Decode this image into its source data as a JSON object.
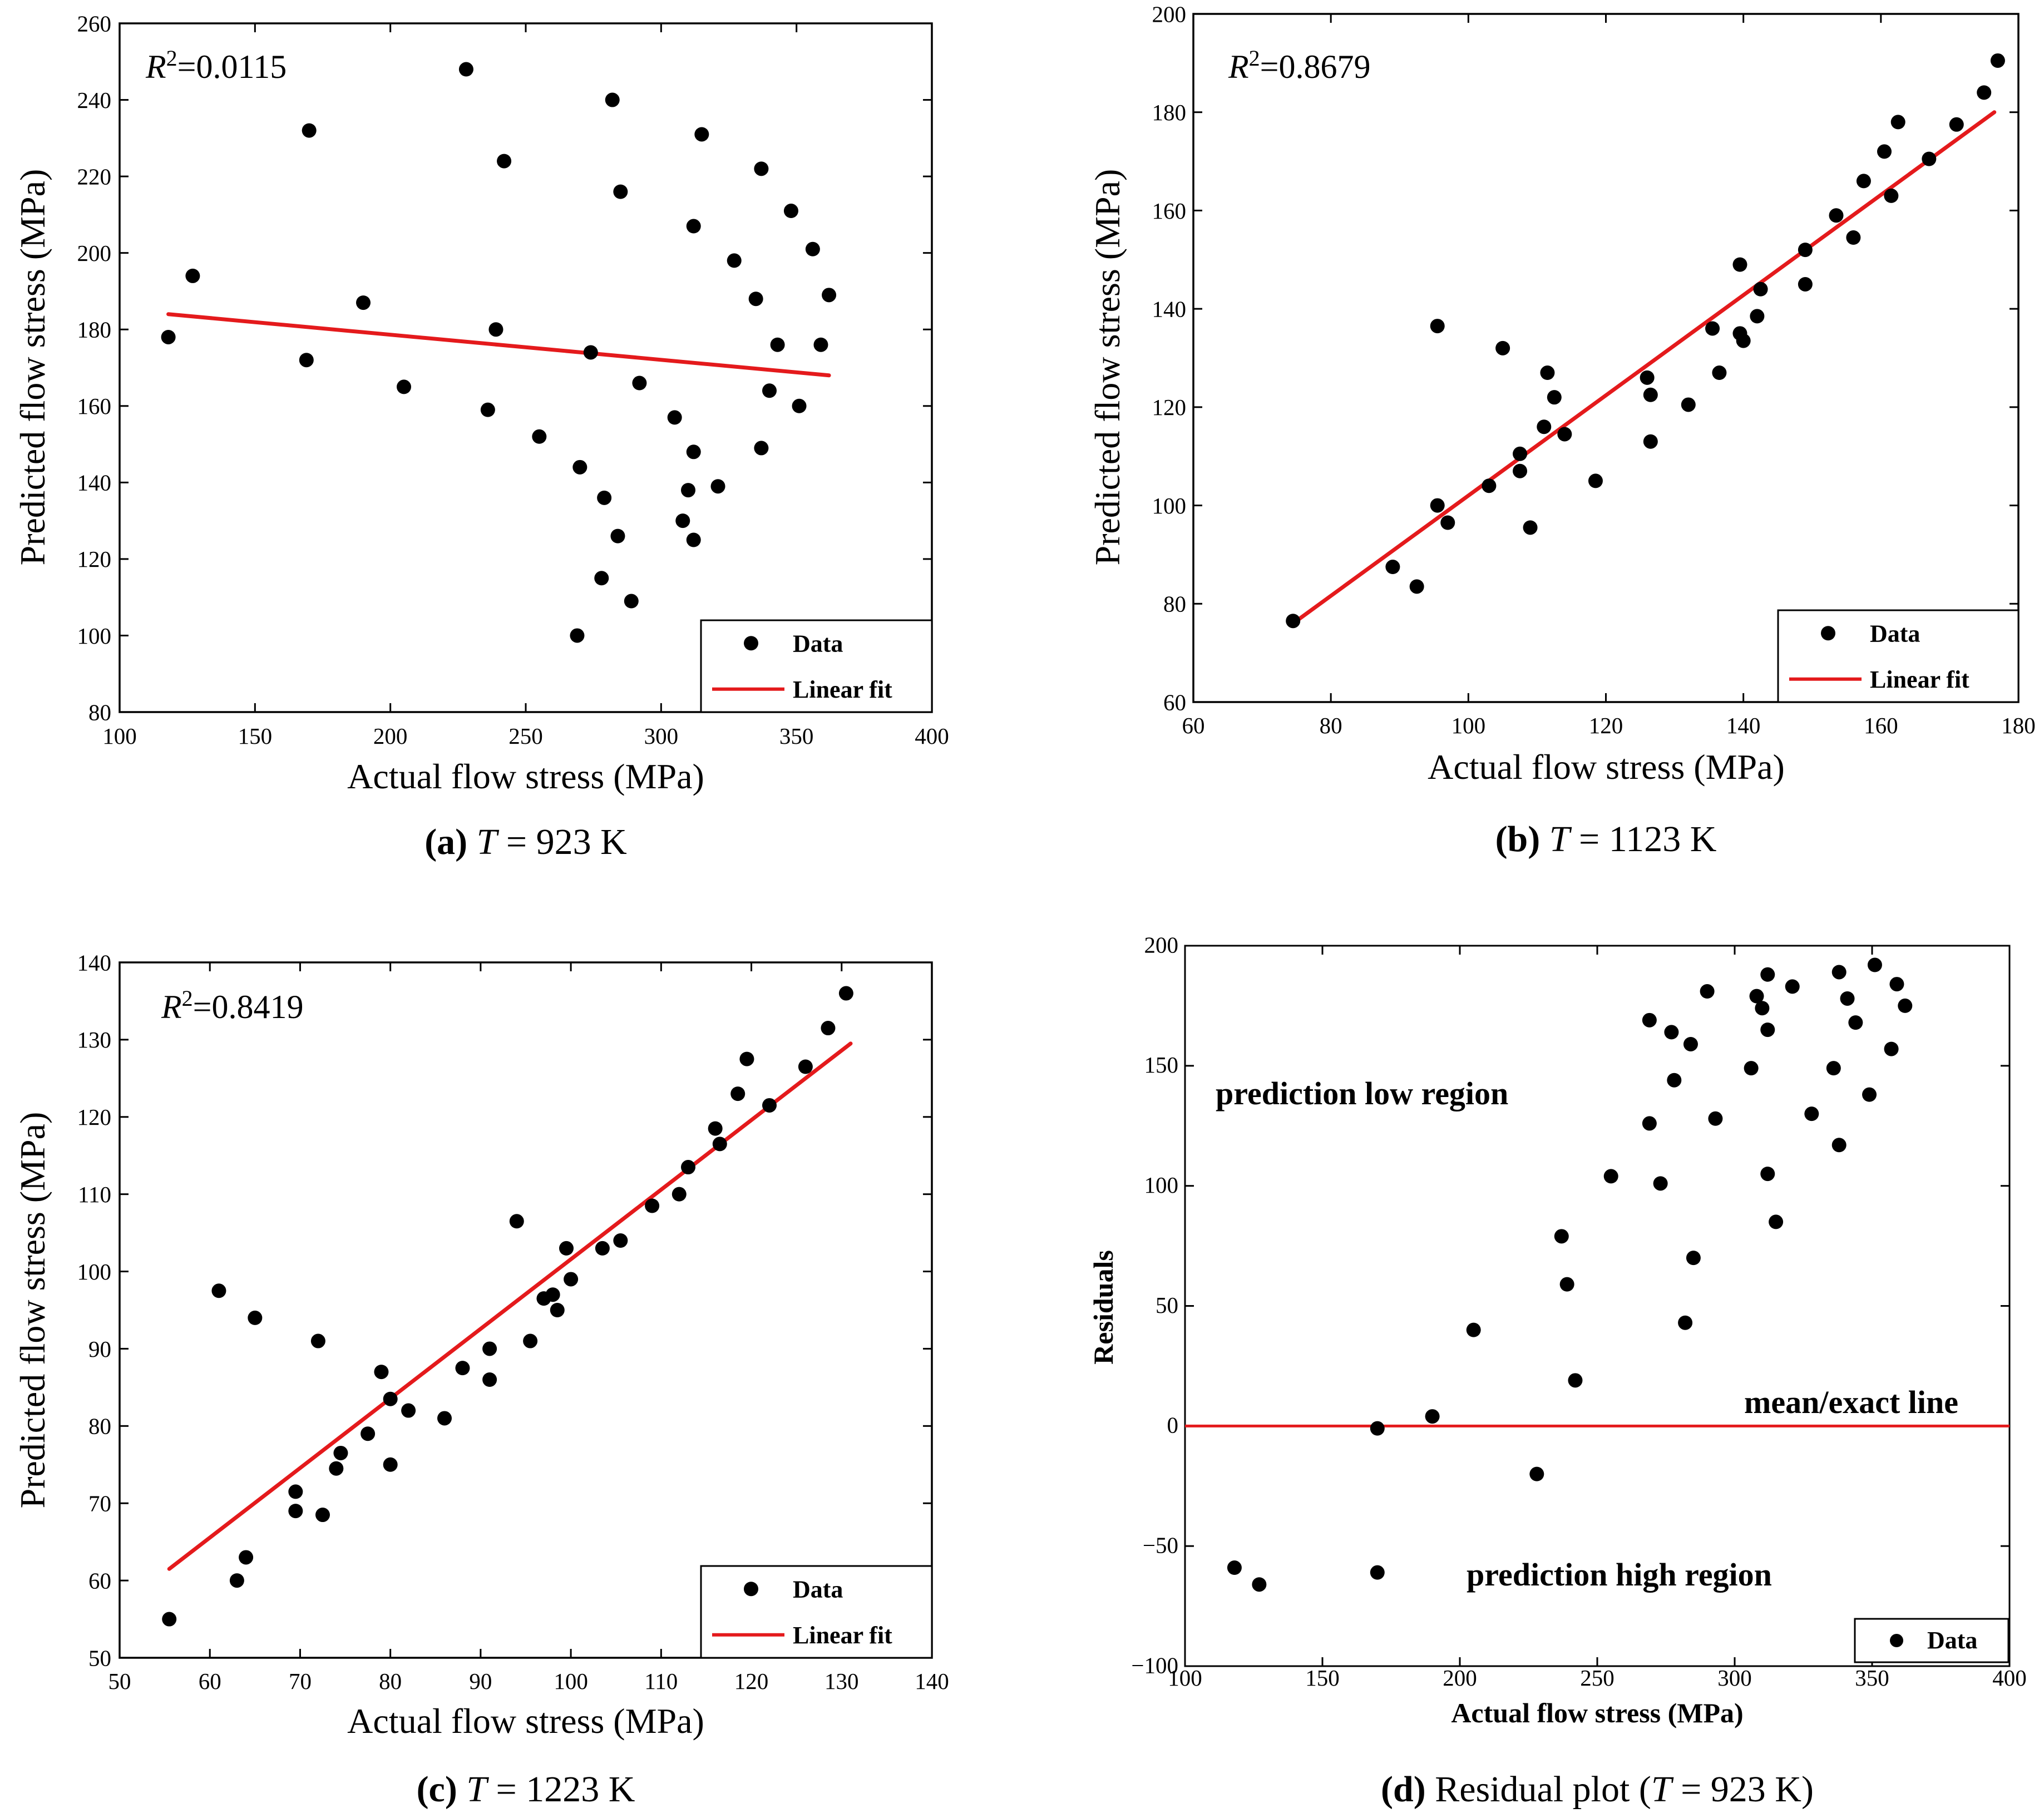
{
  "colors": {
    "fit": "#e41a1c",
    "point": "#000000",
    "frame": "#000000"
  },
  "chart_data": [
    {
      "id": "a",
      "type": "scatter",
      "caption": {
        "letter": "(a)",
        "var": "T",
        "rest": " = 923 K"
      },
      "r2": {
        "prefix": "R",
        "sup": "2",
        "value": "=0.0115"
      },
      "xlabel": "Actual flow stress (MPa)",
      "ylabel": "Predicted flow stress (MPa)",
      "xlim": [
        100,
        400
      ],
      "ylim": [
        80,
        260
      ],
      "xticks": [
        100,
        150,
        200,
        250,
        300,
        350,
        400
      ],
      "yticks": [
        80,
        100,
        120,
        140,
        160,
        180,
        200,
        220,
        240,
        260
      ],
      "legend": {
        "position": "bottom-right",
        "entries": [
          "Data",
          "Linear fit"
        ]
      },
      "fit": {
        "x": [
          118,
          362
        ],
        "y": [
          184,
          168
        ]
      },
      "points": [
        [
          118,
          178
        ],
        [
          127,
          194
        ],
        [
          169,
          172
        ],
        [
          170,
          232
        ],
        [
          190,
          187
        ],
        [
          205,
          165
        ],
        [
          228,
          248
        ],
        [
          236,
          159
        ],
        [
          239,
          180
        ],
        [
          242,
          224
        ],
        [
          255,
          152
        ],
        [
          269,
          100
        ],
        [
          270,
          144
        ],
        [
          274,
          174
        ],
        [
          278,
          115
        ],
        [
          279,
          136
        ],
        [
          282,
          240
        ],
        [
          284,
          126
        ],
        [
          285,
          216
        ],
        [
          289,
          109
        ],
        [
          292,
          166
        ],
        [
          305,
          157
        ],
        [
          308,
          130
        ],
        [
          310,
          138
        ],
        [
          312,
          207
        ],
        [
          312,
          148
        ],
        [
          312,
          125
        ],
        [
          315,
          231
        ],
        [
          321,
          139
        ],
        [
          327,
          198
        ],
        [
          335,
          188
        ],
        [
          337,
          222
        ],
        [
          337,
          149
        ],
        [
          340,
          164
        ],
        [
          343,
          176
        ],
        [
          348,
          211
        ],
        [
          351,
          160
        ],
        [
          356,
          201
        ],
        [
          359,
          176
        ],
        [
          362,
          189
        ]
      ]
    },
    {
      "id": "b",
      "type": "scatter",
      "caption": {
        "letter": "(b)",
        "var": "T",
        "rest": " = 1123 K"
      },
      "r2": {
        "prefix": "R",
        "sup": "2",
        "value": "=0.8679"
      },
      "xlabel": "Actual flow stress (MPa)",
      "ylabel": "Predicted flow stress (MPa)",
      "xlim": [
        60,
        180
      ],
      "ylim": [
        60,
        200
      ],
      "xticks": [
        60,
        80,
        100,
        120,
        140,
        160,
        180
      ],
      "yticks": [
        60,
        80,
        100,
        120,
        140,
        160,
        180,
        200
      ],
      "legend": {
        "position": "bottom-right",
        "entries": [
          "Data",
          "Linear fit"
        ]
      },
      "fit": {
        "x": [
          74.5,
          176.5
        ],
        "y": [
          76,
          180
        ]
      },
      "points": [
        [
          74.5,
          76.5
        ],
        [
          89,
          87.5
        ],
        [
          92.5,
          83.5
        ],
        [
          95.5,
          136.5
        ],
        [
          95.5,
          100
        ],
        [
          97,
          96.5
        ],
        [
          103,
          104
        ],
        [
          105,
          132
        ],
        [
          107.5,
          110.5
        ],
        [
          107.5,
          107
        ],
        [
          109,
          95.5
        ],
        [
          111,
          116
        ],
        [
          111.5,
          127
        ],
        [
          112.5,
          122
        ],
        [
          114,
          114.5
        ],
        [
          118.5,
          105
        ],
        [
          126,
          126
        ],
        [
          126.5,
          122.5
        ],
        [
          126.5,
          113
        ],
        [
          132,
          120.5
        ],
        [
          135.5,
          136
        ],
        [
          136.5,
          127
        ],
        [
          139.5,
          149
        ],
        [
          139.5,
          135
        ],
        [
          140,
          133.5
        ],
        [
          142,
          138.5
        ],
        [
          142.5,
          144
        ],
        [
          149,
          152
        ],
        [
          149,
          145
        ],
        [
          153.5,
          159
        ],
        [
          156,
          154.5
        ],
        [
          157.5,
          166
        ],
        [
          160.5,
          172
        ],
        [
          161.5,
          163
        ],
        [
          162.5,
          178
        ],
        [
          167,
          170.5
        ],
        [
          171,
          177.5
        ],
        [
          175,
          184
        ],
        [
          177,
          190.5
        ]
      ]
    },
    {
      "id": "c",
      "type": "scatter",
      "caption": {
        "letter": "(c)",
        "var": "T",
        "rest": " = 1223 K"
      },
      "r2": {
        "prefix": "R",
        "sup": "2",
        "value": "=0.8419"
      },
      "xlabel": "Actual flow stress (MPa)",
      "ylabel": "Predicted flow stress (MPa)",
      "xlim": [
        50,
        140
      ],
      "ylim": [
        50,
        140
      ],
      "xticks": [
        50,
        60,
        70,
        80,
        90,
        100,
        110,
        120,
        130,
        140
      ],
      "yticks": [
        50,
        60,
        70,
        80,
        90,
        100,
        110,
        120,
        130,
        140
      ],
      "legend": {
        "position": "bottom-right",
        "entries": [
          "Data",
          "Linear fit"
        ]
      },
      "fit": {
        "x": [
          55.5,
          131
        ],
        "y": [
          61.5,
          129.5
        ]
      },
      "points": [
        [
          55.5,
          55
        ],
        [
          61,
          97.5
        ],
        [
          63,
          60
        ],
        [
          64,
          63
        ],
        [
          65,
          94
        ],
        [
          69.5,
          71.5
        ],
        [
          69.5,
          69
        ],
        [
          72,
          91
        ],
        [
          72.5,
          68.5
        ],
        [
          74,
          74.5
        ],
        [
          74.5,
          76.5
        ],
        [
          77.5,
          79
        ],
        [
          79,
          87
        ],
        [
          80,
          83.5
        ],
        [
          80,
          75
        ],
        [
          82,
          82
        ],
        [
          86,
          81
        ],
        [
          88,
          87.5
        ],
        [
          91,
          90
        ],
        [
          91,
          86
        ],
        [
          94,
          106.5
        ],
        [
          95.5,
          91
        ],
        [
          97,
          96.5
        ],
        [
          98,
          97
        ],
        [
          98.5,
          95
        ],
        [
          99.5,
          103
        ],
        [
          100,
          99
        ],
        [
          103.5,
          103
        ],
        [
          105.5,
          104
        ],
        [
          109,
          108.5
        ],
        [
          112,
          110
        ],
        [
          113,
          113.5
        ],
        [
          116,
          118.5
        ],
        [
          116.5,
          116.5
        ],
        [
          118.5,
          123
        ],
        [
          119.5,
          127.5
        ],
        [
          122,
          121.5
        ],
        [
          126,
          126.5
        ],
        [
          128.5,
          131.5
        ],
        [
          130.5,
          136
        ]
      ]
    },
    {
      "id": "d",
      "type": "scatter",
      "caption": {
        "letter": "(d)",
        "pre": " Residual plot (",
        "var": "T",
        "rest": " = 923 K)"
      },
      "xlabel": "Actual flow stress (MPa)",
      "ylabel": "Residuals",
      "xlim": [
        100,
        400
      ],
      "ylim": [
        -100,
        200
      ],
      "xticks": [
        100,
        150,
        200,
        250,
        300,
        350,
        400
      ],
      "yticks": [
        -100,
        -50,
        0,
        50,
        100,
        150,
        200
      ],
      "legend": {
        "position": "bottom-right",
        "entries": [
          "Data"
        ]
      },
      "reference_line": {
        "y": 0
      },
      "annotations": [
        "prediction low region",
        "mean/exact line",
        "prediction high region"
      ],
      "points": [
        [
          118,
          -59
        ],
        [
          127,
          -66
        ],
        [
          170,
          -61
        ],
        [
          170,
          -1
        ],
        [
          190,
          4
        ],
        [
          205,
          40
        ],
        [
          228,
          -20
        ],
        [
          237,
          79
        ],
        [
          239,
          59
        ],
        [
          242,
          19
        ],
        [
          255,
          104
        ],
        [
          269,
          169
        ],
        [
          269,
          126
        ],
        [
          273,
          101
        ],
        [
          277,
          164
        ],
        [
          278,
          144
        ],
        [
          282,
          43
        ],
        [
          284,
          159
        ],
        [
          285,
          70
        ],
        [
          290,
          181
        ],
        [
          293,
          128
        ],
        [
          306,
          149
        ],
        [
          308,
          179
        ],
        [
          310,
          174
        ],
        [
          312,
          105
        ],
        [
          312,
          188
        ],
        [
          312,
          165
        ],
        [
          315,
          85
        ],
        [
          321,
          183
        ],
        [
          328,
          130
        ],
        [
          336,
          149
        ],
        [
          338,
          189
        ],
        [
          338,
          117
        ],
        [
          341,
          178
        ],
        [
          344,
          168
        ],
        [
          349,
          138
        ],
        [
          351,
          192
        ],
        [
          357,
          157
        ],
        [
          359,
          184
        ],
        [
          362,
          175
        ]
      ]
    }
  ]
}
